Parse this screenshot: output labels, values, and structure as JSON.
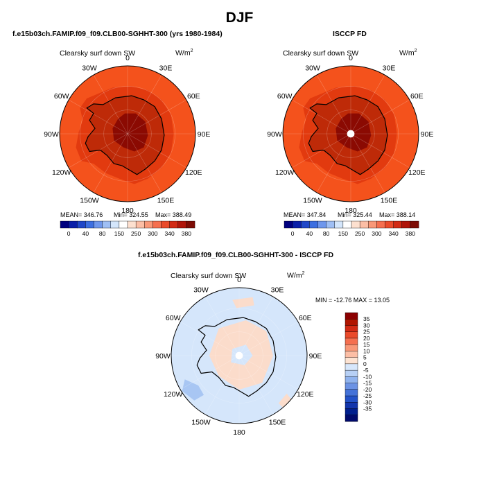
{
  "title": "DJF",
  "panels": [
    {
      "title": "f.e15b03ch.FAMIP.f09_f09.CLB00-SGHHT-300 (yrs 1980-1984)",
      "variable": "Clearsky surf down SW",
      "units": "W/m",
      "units_sup": "2",
      "stats": {
        "mean": "MEAN= 346.76",
        "min": "Min= 324.55",
        "max": "Max= 388.49"
      }
    },
    {
      "title": "ISCCP FD",
      "variable": "Clearsky surf down SW",
      "units": "W/m",
      "units_sup": "2",
      "stats": {
        "mean": "MEAN= 347.84",
        "min": "Min= 325.44",
        "max": "Max= 388.14"
      }
    },
    {
      "title": "f.e15b03ch.FAMIP.f09_f09.CLB00-SGHHT-300 - ISCCP FD",
      "variable": "Clearsky surf down SW",
      "units": "W/m",
      "units_sup": "2",
      "stats": {
        "minmax": "MIN = -12.76  MAX =  13.05"
      }
    }
  ],
  "longitude_labels": [
    "0",
    "30E",
    "60E",
    "90E",
    "120E",
    "150E",
    "180",
    "150W",
    "120W",
    "90W",
    "60W",
    "30W"
  ],
  "colorbar_top": {
    "ticks": [
      "0",
      "40",
      "80",
      "150",
      "250",
      "300",
      "340",
      "380"
    ],
    "colors": [
      "#00007f",
      "#0a1fa8",
      "#2047c8",
      "#3d6fe0",
      "#6f97ec",
      "#9fbff4",
      "#d4e6fb",
      "#ffffff",
      "#fde0cf",
      "#fcbea5",
      "#f99878",
      "#f56f4f",
      "#ea4a2a",
      "#d22a14",
      "#b0150a",
      "#7d0c05"
    ]
  },
  "colorbar_diff": {
    "labels": [
      "35",
      "30",
      "25",
      "20",
      "15",
      "10",
      "5",
      "0",
      "-5",
      "-10",
      "-15",
      "-20",
      "-25",
      "-30",
      "-35"
    ],
    "colors": [
      "#8b0000",
      "#b01500",
      "#d22a14",
      "#ea4a2a",
      "#f56f4f",
      "#f99878",
      "#fcbea5",
      "#fde3d2",
      "#d7e7fb",
      "#b7d0f5",
      "#90b3ee",
      "#6b92e4",
      "#4472d8",
      "#2352c8",
      "#1235ac",
      "#001f8e",
      "#000a6c"
    ]
  },
  "map_colors": {
    "ocean": "#f4521c",
    "coast_band": "#e23a0f",
    "ice_mid": "#be2a08",
    "ice_high": "#8b0a02",
    "diff_base": "#d5e6fb",
    "diff_pos": "#fbdccb",
    "diff_neg": "#a8c6f3"
  }
}
